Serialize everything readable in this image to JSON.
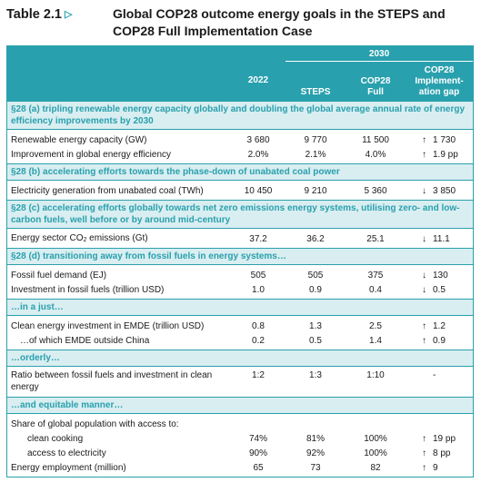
{
  "header": {
    "table_label": "Table 2.1",
    "title_line1": "Global COP28 outcome energy goals in the STEPS and",
    "title_line2": "COP28 Full Implementation Case"
  },
  "columns": {
    "year_2030": "2030",
    "c2022": "2022",
    "steps": "STEPS",
    "cop28_full_l1": "COP28",
    "cop28_full_l2": "Full",
    "gap_l1": "COP28",
    "gap_l2": "Implement-",
    "gap_l3": "ation gap"
  },
  "sections": [
    {
      "heading": "§28 (a) tripling renewable energy capacity globally and doubling the global average annual rate of energy efficiency improvements by 2030",
      "rows": [
        {
          "label": "Renewable energy capacity (GW)",
          "v2022": "3 680",
          "steps": "9 770",
          "cop28": "11 500",
          "gap_arrow": "↑",
          "gap": "1 730"
        },
        {
          "label": "Improvement in global energy efficiency",
          "v2022": "2.0%",
          "steps": "2.1%",
          "cop28": "4.0%",
          "gap_arrow": "↑",
          "gap": "1.9 pp"
        }
      ]
    },
    {
      "heading": "§28 (b) accelerating efforts towards the phase-down of unabated coal power",
      "rows": [
        {
          "label": "Electricity generation from unabated coal (TWh)",
          "v2022": "10 450",
          "steps": "9 210",
          "cop28": "5 360",
          "gap_arrow": "↓",
          "gap": "3 850"
        }
      ]
    },
    {
      "heading": "§28 (c) accelerating efforts globally towards net zero emissions energy systems, utilising zero- and low-carbon fuels, well before or by around mid-century",
      "rows": [
        {
          "label_pre": "Energy sector CO",
          "label_sub": "2",
          "label_post": " emissions (Gt)",
          "v2022": "37.2",
          "steps": "36.2",
          "cop28": "25.1",
          "gap_arrow": "↓",
          "gap": "11.1"
        }
      ]
    },
    {
      "heading": "§28 (d) transitioning away from fossil fuels in energy systems…",
      "rows": [
        {
          "label": "Fossil fuel demand (EJ)",
          "v2022": "505",
          "steps": "505",
          "cop28": "375",
          "gap_arrow": "↓",
          "gap": "130"
        },
        {
          "label": "Investment in fossil fuels (trillion USD)",
          "v2022": "1.0",
          "steps": "0.9",
          "cop28": "0.4",
          "gap_arrow": "↓",
          "gap": "0.5"
        }
      ]
    },
    {
      "heading": "…in a just…",
      "rows": [
        {
          "label": "Clean energy investment in EMDE (trillion USD)",
          "v2022": "0.8",
          "steps": "1.3",
          "cop28": "2.5",
          "gap_arrow": "↑",
          "gap": "1.2"
        },
        {
          "label": "…of which EMDE outside China",
          "v2022": "0.2",
          "steps": "0.5",
          "cop28": "1.4",
          "gap_arrow": "↑",
          "gap": "0.9"
        }
      ]
    },
    {
      "heading": "…orderly…",
      "rows": [
        {
          "label": "Ratio between fossil fuels and investment in clean energy",
          "v2022": "1:2",
          "steps": "1:3",
          "cop28": "1:10",
          "gap_arrow": "",
          "gap": "-"
        }
      ]
    },
    {
      "heading": "…and equitable manner…",
      "rows": [
        {
          "label": "Share of global population with access to:",
          "v2022": "",
          "steps": "",
          "cop28": "",
          "gap_arrow": "",
          "gap": ""
        },
        {
          "label": "clean cooking",
          "v2022": "74%",
          "steps": "81%",
          "cop28": "100%",
          "gap_arrow": "↑",
          "gap": "19 pp"
        },
        {
          "label": "access to electricity",
          "v2022": "90%",
          "steps": "92%",
          "cop28": "100%",
          "gap_arrow": "↑",
          "gap": "8 pp"
        },
        {
          "label": "Energy employment (million)",
          "v2022": "65",
          "steps": "73",
          "cop28": "82",
          "gap_arrow": "↑",
          "gap": "9"
        }
      ]
    }
  ],
  "colors": {
    "accent": "#29a0ad",
    "section_bg": "#d9eef1"
  }
}
